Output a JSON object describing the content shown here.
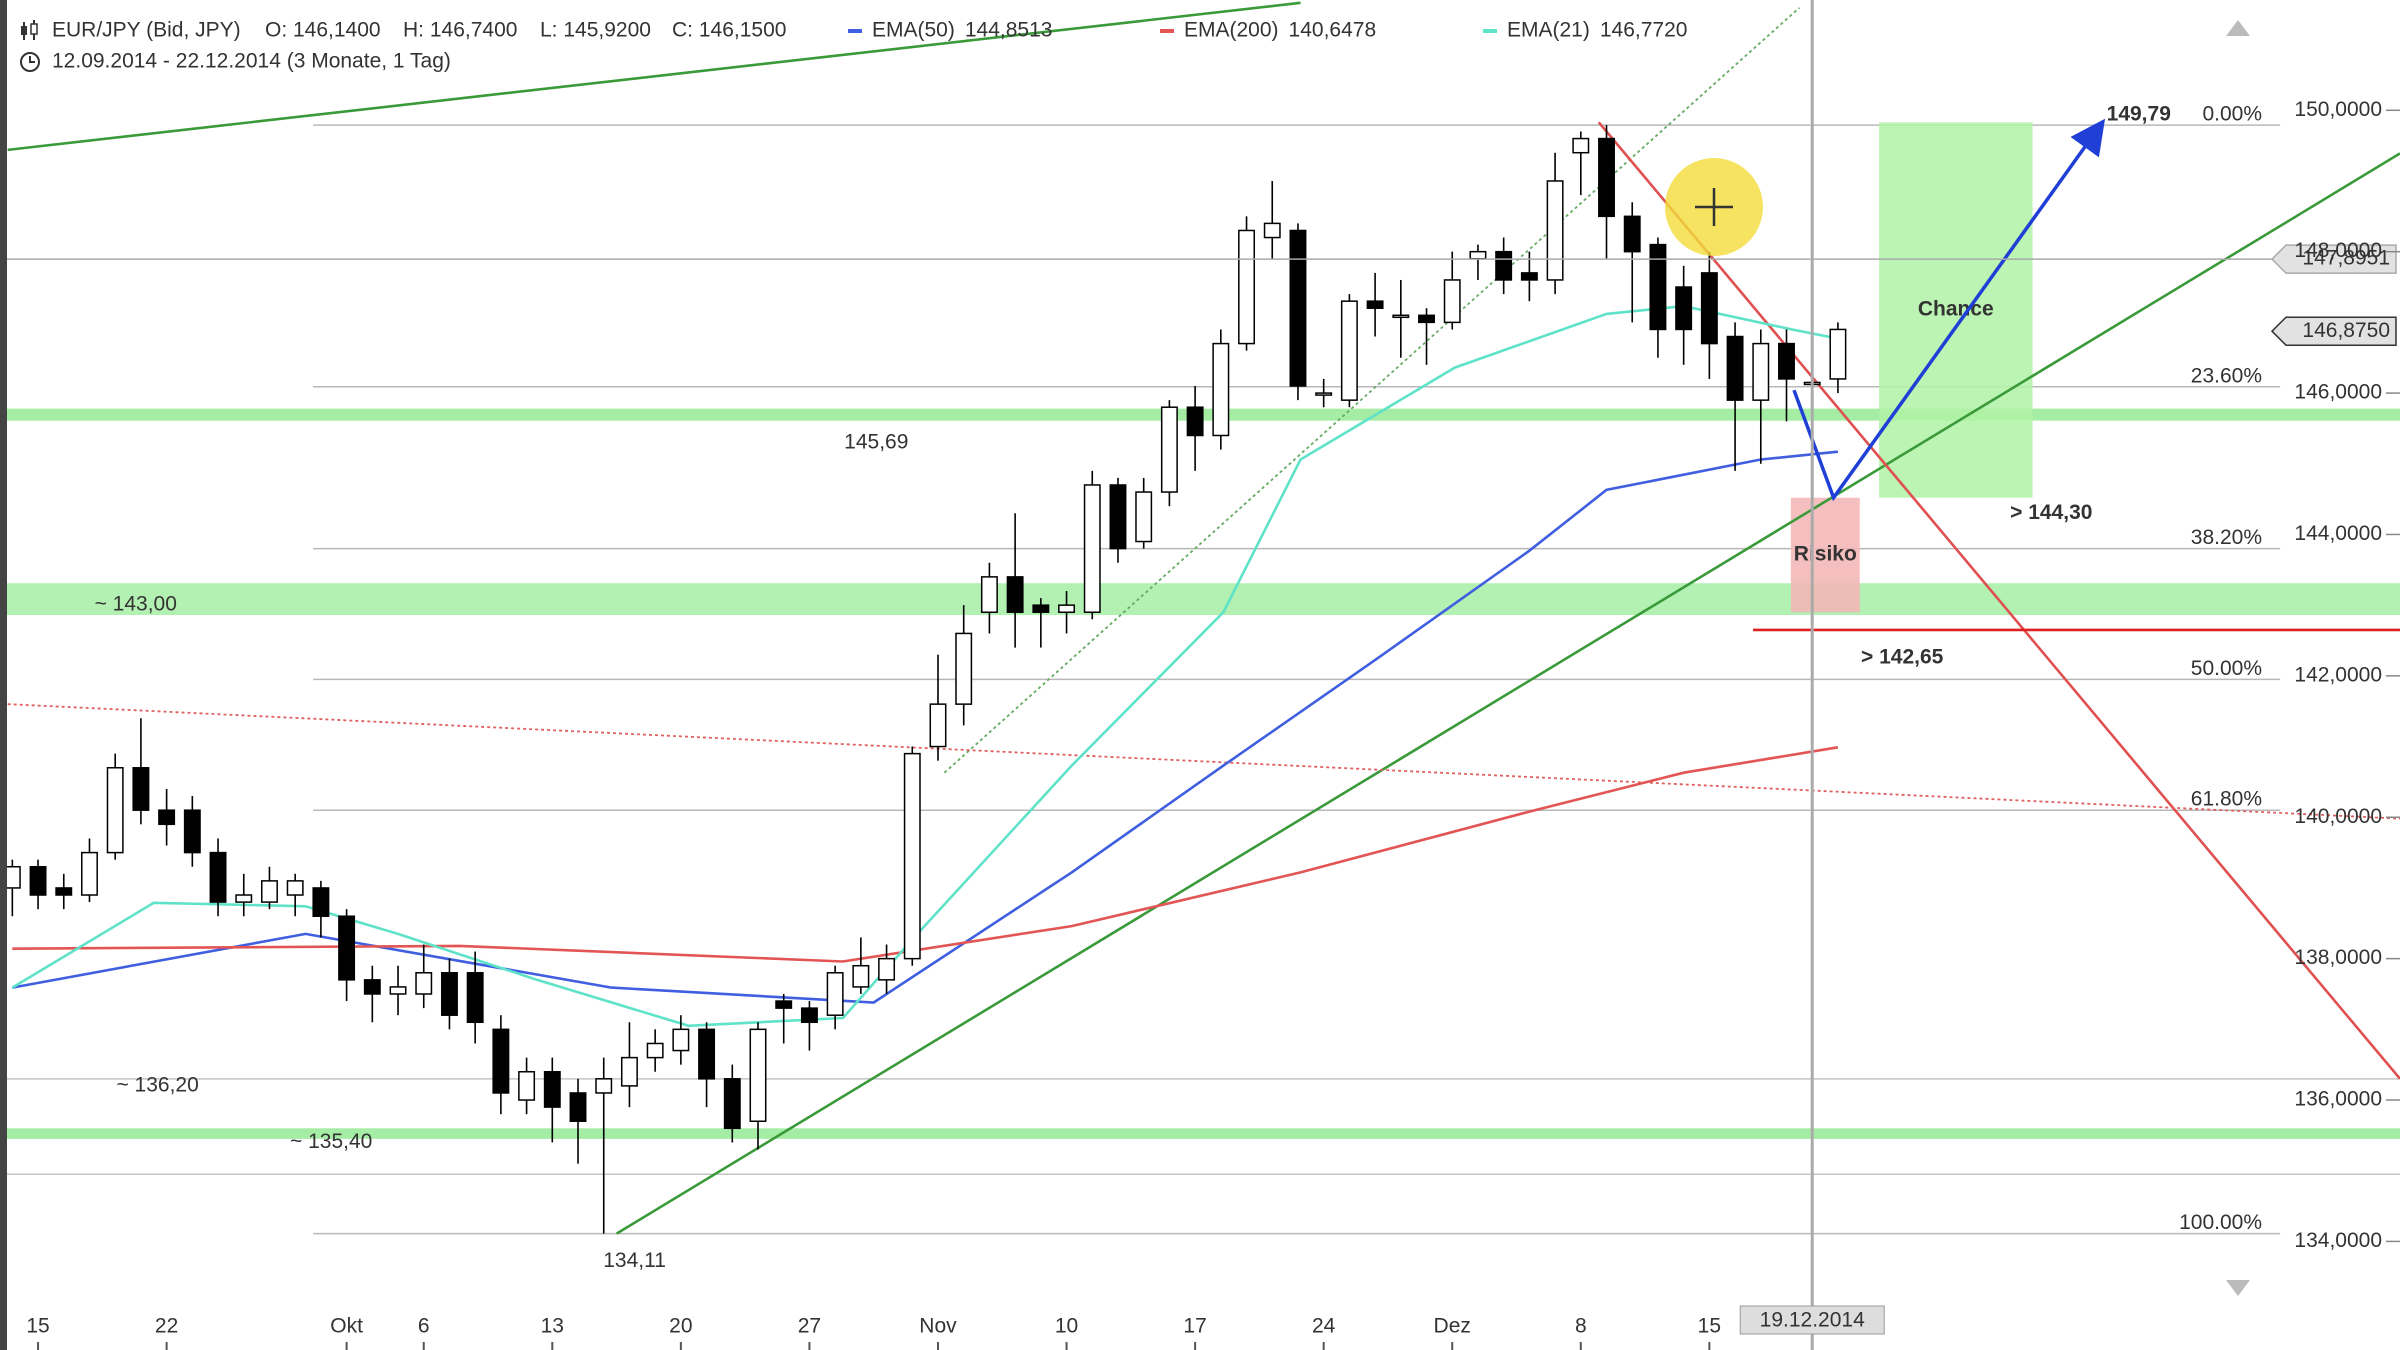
{
  "header": {
    "instrument": "EUR/JPY (Bid, JPY)",
    "open": "O: 146,1400",
    "high": "H: 146,7400",
    "low": "L: 145,9200",
    "close": "C: 146,1500",
    "period": "12.09.2014 - 22.12.2014 (3 Monate, 1 Tag)"
  },
  "chart_data": {
    "type": "candlestick",
    "categories": [
      null,
      "15",
      null,
      null,
      null,
      null,
      "22",
      null,
      null,
      null,
      null,
      null,
      null,
      "Okt",
      null,
      null,
      "6",
      null,
      null,
      null,
      null,
      "13",
      null,
      null,
      null,
      null,
      "20",
      null,
      null,
      null,
      null,
      "27",
      null,
      null,
      null,
      null,
      "Nov",
      null,
      null,
      null,
      null,
      "10",
      null,
      null,
      null,
      null,
      "17",
      null,
      null,
      null,
      null,
      "24",
      null,
      null,
      null,
      null,
      "Dez",
      null,
      null,
      null,
      null,
      "8",
      null,
      null,
      null,
      null,
      "15",
      null,
      null,
      null,
      null,
      null
    ],
    "open": [
      139.0,
      139.3,
      139.0,
      138.9,
      139.5,
      140.7,
      140.1,
      140.1,
      139.5,
      138.8,
      138.8,
      138.9,
      139.0,
      138.6,
      137.7,
      137.5,
      137.5,
      137.8,
      137.8,
      137.0,
      136.0,
      136.4,
      136.1,
      136.1,
      136.2,
      136.6,
      136.7,
      137.0,
      136.3,
      135.7,
      137.4,
      137.3,
      137.2,
      137.6,
      137.7,
      138.0,
      141.0,
      141.6,
      142.9,
      143.4,
      143.0,
      142.9,
      142.9,
      144.7,
      143.9,
      144.6,
      145.8,
      145.4,
      146.7,
      148.2,
      148.3,
      146.0,
      145.9,
      147.3,
      147.1,
      147.1,
      147.0,
      147.9,
      148.0,
      147.7,
      147.6,
      149.4,
      149.6,
      148.5,
      148.1,
      147.5,
      147.7,
      146.8,
      145.9,
      146.7,
      146.14,
      146.2
    ],
    "high": [
      139.4,
      139.4,
      139.2,
      139.7,
      140.9,
      141.4,
      140.4,
      140.3,
      139.7,
      139.2,
      139.3,
      139.2,
      139.1,
      138.7,
      137.9,
      137.9,
      138.2,
      138.0,
      138.1,
      137.2,
      136.6,
      136.6,
      136.3,
      136.6,
      137.1,
      137.0,
      137.2,
      137.1,
      136.5,
      137.1,
      137.5,
      137.4,
      137.9,
      138.3,
      138.2,
      141.0,
      142.3,
      143.0,
      143.6,
      144.3,
      143.1,
      143.2,
      144.9,
      144.8,
      144.8,
      145.9,
      146.1,
      146.9,
      148.5,
      149.0,
      148.4,
      146.2,
      147.4,
      147.7,
      147.6,
      147.2,
      148.0,
      148.1,
      148.2,
      148.0,
      149.4,
      149.7,
      149.79,
      148.7,
      148.2,
      147.8,
      148.0,
      147.0,
      146.9,
      146.9,
      146.74,
      147.0
    ],
    "low": [
      138.6,
      138.7,
      138.7,
      138.8,
      139.4,
      139.9,
      139.6,
      139.3,
      138.6,
      138.6,
      138.7,
      138.6,
      138.3,
      137.4,
      137.1,
      137.2,
      137.3,
      137.0,
      136.8,
      135.8,
      135.8,
      135.4,
      135.1,
      134.11,
      135.9,
      136.4,
      136.5,
      135.9,
      135.4,
      135.3,
      136.8,
      136.7,
      137.0,
      137.5,
      137.5,
      137.9,
      140.8,
      141.3,
      142.6,
      142.4,
      142.4,
      142.6,
      142.8,
      143.6,
      143.8,
      144.4,
      144.9,
      145.2,
      146.6,
      147.9,
      145.9,
      145.8,
      145.8,
      146.8,
      146.5,
      146.4,
      146.9,
      147.6,
      147.4,
      147.3,
      147.4,
      148.8,
      147.9,
      147.0,
      146.5,
      146.4,
      146.2,
      144.9,
      145.0,
      145.6,
      145.92,
      146.0
    ],
    "close": [
      139.3,
      138.9,
      138.9,
      139.5,
      140.7,
      140.1,
      139.9,
      139.5,
      138.8,
      138.9,
      139.1,
      139.1,
      138.6,
      137.7,
      137.5,
      137.6,
      137.8,
      137.2,
      137.1,
      136.1,
      136.4,
      135.9,
      135.7,
      136.3,
      136.6,
      136.8,
      137.0,
      136.3,
      135.6,
      137.0,
      137.3,
      137.1,
      137.8,
      137.9,
      138.0,
      140.9,
      141.6,
      142.6,
      143.4,
      142.9,
      142.9,
      143.0,
      144.7,
      143.8,
      144.6,
      145.8,
      145.4,
      146.7,
      148.3,
      148.4,
      146.1,
      146.0,
      147.3,
      147.2,
      147.1,
      147.0,
      147.6,
      148.0,
      147.6,
      147.6,
      149.0,
      149.6,
      148.5,
      148.0,
      146.9,
      146.9,
      146.7,
      145.9,
      146.7,
      146.2,
      146.15,
      146.9
    ],
    "up_color": "#ffffff",
    "down_color": "#000000",
    "xlim": [
      -0.48,
      92.86
    ],
    "ylim": [
      133.03,
      151.56
    ],
    "yticks": [
      {
        "value": 134,
        "label": "134,0000"
      },
      {
        "value": 136,
        "label": "136,0000"
      },
      {
        "value": 138,
        "label": "138,0000"
      },
      {
        "value": 140,
        "label": "140,0000"
      },
      {
        "value": 142,
        "label": "142,0000"
      },
      {
        "value": 144,
        "label": "144,0000"
      },
      {
        "value": 146,
        "label": "146,0000"
      },
      {
        "value": 148,
        "label": "148,0000"
      },
      {
        "value": 150,
        "label": "150,0000"
      }
    ],
    "grid": false,
    "indicators": [
      {
        "name": "EMA(50)",
        "color": "#3f5fe0",
        "last_label": "144,8513",
        "x": [
          0,
          11.4,
          23.3,
          33.5,
          41.2,
          47.1,
          53.1,
          59,
          62,
          68,
          71
        ],
        "values": [
          137.59,
          138.35,
          137.59,
          137.38,
          139.22,
          140.73,
          142.25,
          143.77,
          144.63,
          145.06,
          145.17
        ]
      },
      {
        "name": "EMA(200)",
        "color": "#e35555",
        "last_label": "140,6478",
        "x": [
          0,
          17.4,
          32.3,
          41.2,
          50.1,
          59,
          65,
          71
        ],
        "values": [
          138.14,
          138.18,
          137.96,
          138.46,
          139.22,
          140.08,
          140.63,
          140.99
        ]
      },
      {
        "name": "EMA(21)",
        "color": "#5fe3c8",
        "last_label": "146,7720",
        "x": [
          0,
          5.5,
          11.4,
          15,
          20.4,
          26.3,
          32.3,
          35.2,
          41.2,
          47.1,
          50.1,
          56.1,
          62,
          65,
          69.2,
          71
        ],
        "values": [
          137.59,
          138.79,
          138.74,
          138.35,
          137.7,
          137.05,
          137.16,
          138.35,
          140.73,
          142.9,
          145.06,
          146.36,
          147.12,
          147.23,
          146.9,
          146.77
        ]
      }
    ],
    "price_markers": [
      {
        "value": 147.8951,
        "label": "147,8951",
        "line": true
      },
      {
        "value": 146.875,
        "label": "146,8750",
        "line": false
      }
    ],
    "fibonacci": {
      "high": 149.79,
      "low": 134.11,
      "x": [
        11.7,
        88.2
      ],
      "levels": [
        {
          "value": 0,
          "label": "0.00%"
        },
        {
          "value": 23.6,
          "label": "23.60%"
        },
        {
          "value": 38.2,
          "label": "38.20%"
        },
        {
          "value": 50,
          "label": "50.00%"
        },
        {
          "value": 61.8,
          "label": "61.80%"
        },
        {
          "value": 100,
          "label": "100.00%"
        }
      ]
    },
    "zones": [
      {
        "from": 145.61,
        "to": 145.78,
        "color": "#8fe88f"
      },
      {
        "from": 142.86,
        "to": 143.31,
        "color": "#9fee9f"
      },
      {
        "from": 135.45,
        "to": 135.6,
        "color": "#8fe88f"
      }
    ],
    "levels": [
      136.3,
      134.95
    ],
    "trendlines": [
      {
        "color": "#3a9a3a",
        "dashed": false,
        "x": [
          23.5,
          92.86
        ],
        "y": [
          134.11,
          149.39
        ]
      },
      {
        "color": "#3a9a3a",
        "dashed": false,
        "x": [
          -0.18,
          50.1
        ],
        "y": [
          149.44,
          151.52
        ]
      },
      {
        "color": "#66aa66",
        "dashed": true,
        "x": [
          36.25,
          69.5
        ],
        "y": [
          140.63,
          151.45
        ]
      },
      {
        "color": "#e05050",
        "dashed": false,
        "x": [
          61.7,
          92.86
        ],
        "y": [
          149.83,
          136.3
        ]
      },
      {
        "color": "#e06060",
        "dashed": true,
        "x": [
          -0.18,
          92.86
        ],
        "y": [
          141.6,
          139.98
        ]
      },
      {
        "color": "#e02020",
        "dashed": false,
        "x": [
          67.7,
          92.86
        ],
        "y": [
          142.65,
          142.65
        ]
      }
    ],
    "boxes": [
      {
        "label": "Chance",
        "color": "#b0f2a6",
        "x": [
          72.6,
          78.57
        ],
        "y": [
          144.52,
          149.83
        ]
      },
      {
        "label": "Risiko",
        "color": "#f4b4b4",
        "x": [
          69.17,
          71.85
        ],
        "y": [
          142.9,
          144.52
        ]
      }
    ],
    "arrows": [
      {
        "color": "#1f3fd6",
        "x": [
          69.29,
          70.83,
          81.07
        ],
        "y": [
          146.04,
          144.52,
          149.72
        ]
      }
    ],
    "annotations": [
      {
        "label": "145,69",
        "value": 145.69,
        "x": 33.6,
        "position": "below",
        "color": "#999999"
      },
      {
        "label": "~ 143,00",
        "value": 143.0,
        "x": 4.8,
        "position": "on",
        "color": "#999999"
      },
      {
        "label": "~ 136,20",
        "value": 136.2,
        "x": 5.65,
        "position": "on",
        "color": "#999999"
      },
      {
        "label": "~ 135,40",
        "value": 135.4,
        "x": 12.4,
        "position": "on",
        "color": "#999999"
      },
      {
        "label": "134,11",
        "value": 134.11,
        "x": 24.2,
        "position": "below",
        "color": "#999999"
      },
      {
        "label": "149,79",
        "value": 149.79,
        "x": 82.7,
        "position": "above",
        "color": "#2233cc"
      },
      {
        "label": "> 144,30",
        "value": 144.3,
        "x": 79.3,
        "position": "on",
        "color": "#2233cc"
      },
      {
        "label": "> 142,65",
        "value": 142.65,
        "x": 73.5,
        "position": "below",
        "color": "#e02020"
      }
    ],
    "cursor": {
      "label": "19.12.2014",
      "x": 70
    }
  }
}
